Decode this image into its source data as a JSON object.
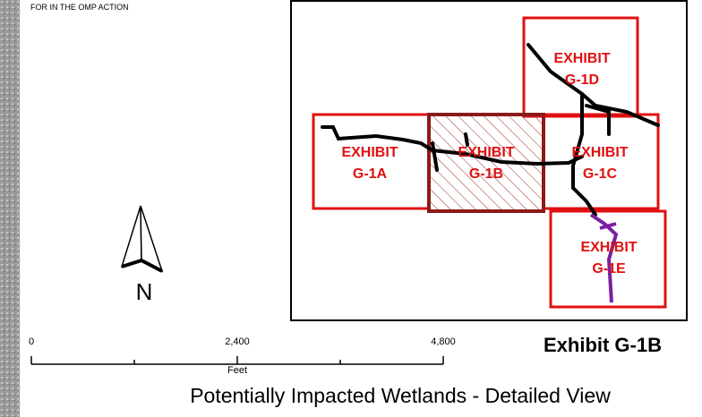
{
  "header": {
    "note": "FOR IN THE OMP ACTION"
  },
  "exhibits": [
    {
      "line1": "EXHIBIT",
      "line2": "G-1D"
    },
    {
      "line1": "EXHIBIT",
      "line2": "G-1A"
    },
    {
      "line1": "EXHIBIT",
      "line2": "G-1B"
    },
    {
      "line1": "EXHIBIT",
      "line2": "G-1C"
    },
    {
      "line1": "EXHIBIT",
      "line2": "G-1E"
    }
  ],
  "north_arrow": {
    "label": "N"
  },
  "scale_bar": {
    "labels": [
      "0",
      "2,400",
      "4,800"
    ],
    "unit": "Feet"
  },
  "footer": {
    "title": "Exhibit G-1B",
    "subtitle": "Potentially Impacted Wetlands - Detailed View"
  }
}
